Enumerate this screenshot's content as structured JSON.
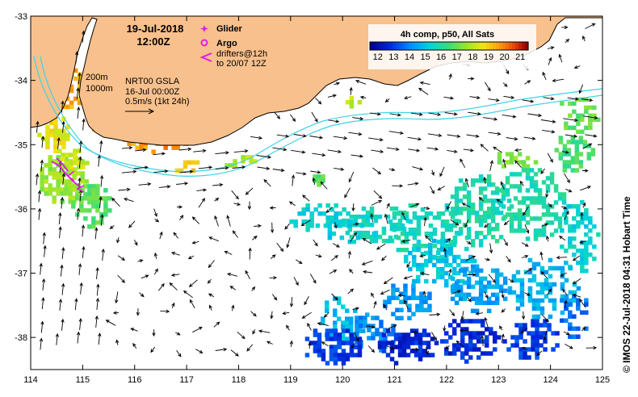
{
  "header": {
    "date": "19-Jul-2018",
    "time": "12:00Z"
  },
  "legend": {
    "glider": "Glider",
    "argo": "Argo",
    "drifters_line1": "drifters@12h",
    "drifters_line2": "to 20/07 12Z"
  },
  "annotations": {
    "isobath_200": "200m",
    "isobath_1000": "1000m",
    "product": "NRT00 GSLA",
    "product_date": "16-Jul 00:00Z",
    "scale": "0.5m/s (1kt 24h)"
  },
  "colorbar": {
    "title": "4h comp, p50, All Sats",
    "ticks": [
      "12",
      "13",
      "14",
      "15",
      "16",
      "17",
      "18",
      "19",
      "20",
      "21"
    ],
    "min": 11.5,
    "max": 21.5
  },
  "side_label": "© IMOS 22-Jul-2018 04:31 Hobart Time",
  "axes": {
    "lon_ticks": [
      "114",
      "115",
      "116",
      "117",
      "118",
      "119",
      "120",
      "121",
      "122",
      "123",
      "124",
      "125"
    ],
    "lat_ticks": [
      "-33",
      "-34",
      "-35",
      "-36",
      "-37",
      "-38"
    ],
    "lon_range": [
      114,
      125
    ],
    "lat_range": [
      -38.5,
      -33
    ]
  },
  "colors": {
    "land": "#f8c08c",
    "coast": "#000000",
    "isobath": "#3cd2e6",
    "glider": "#e020e0",
    "argo": "#e020e0"
  }
}
